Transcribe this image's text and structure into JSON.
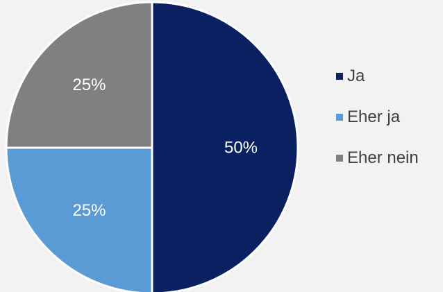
{
  "chart_data": {
    "type": "pie",
    "title": "",
    "categories": [
      "Ja",
      "Eher ja",
      "Eher nein"
    ],
    "values": [
      50,
      25,
      25
    ],
    "labels": [
      "50%",
      "25%",
      "25%"
    ],
    "colors": [
      "#0b2060",
      "#5b9bd5",
      "#808080"
    ],
    "legend_position": "right"
  }
}
